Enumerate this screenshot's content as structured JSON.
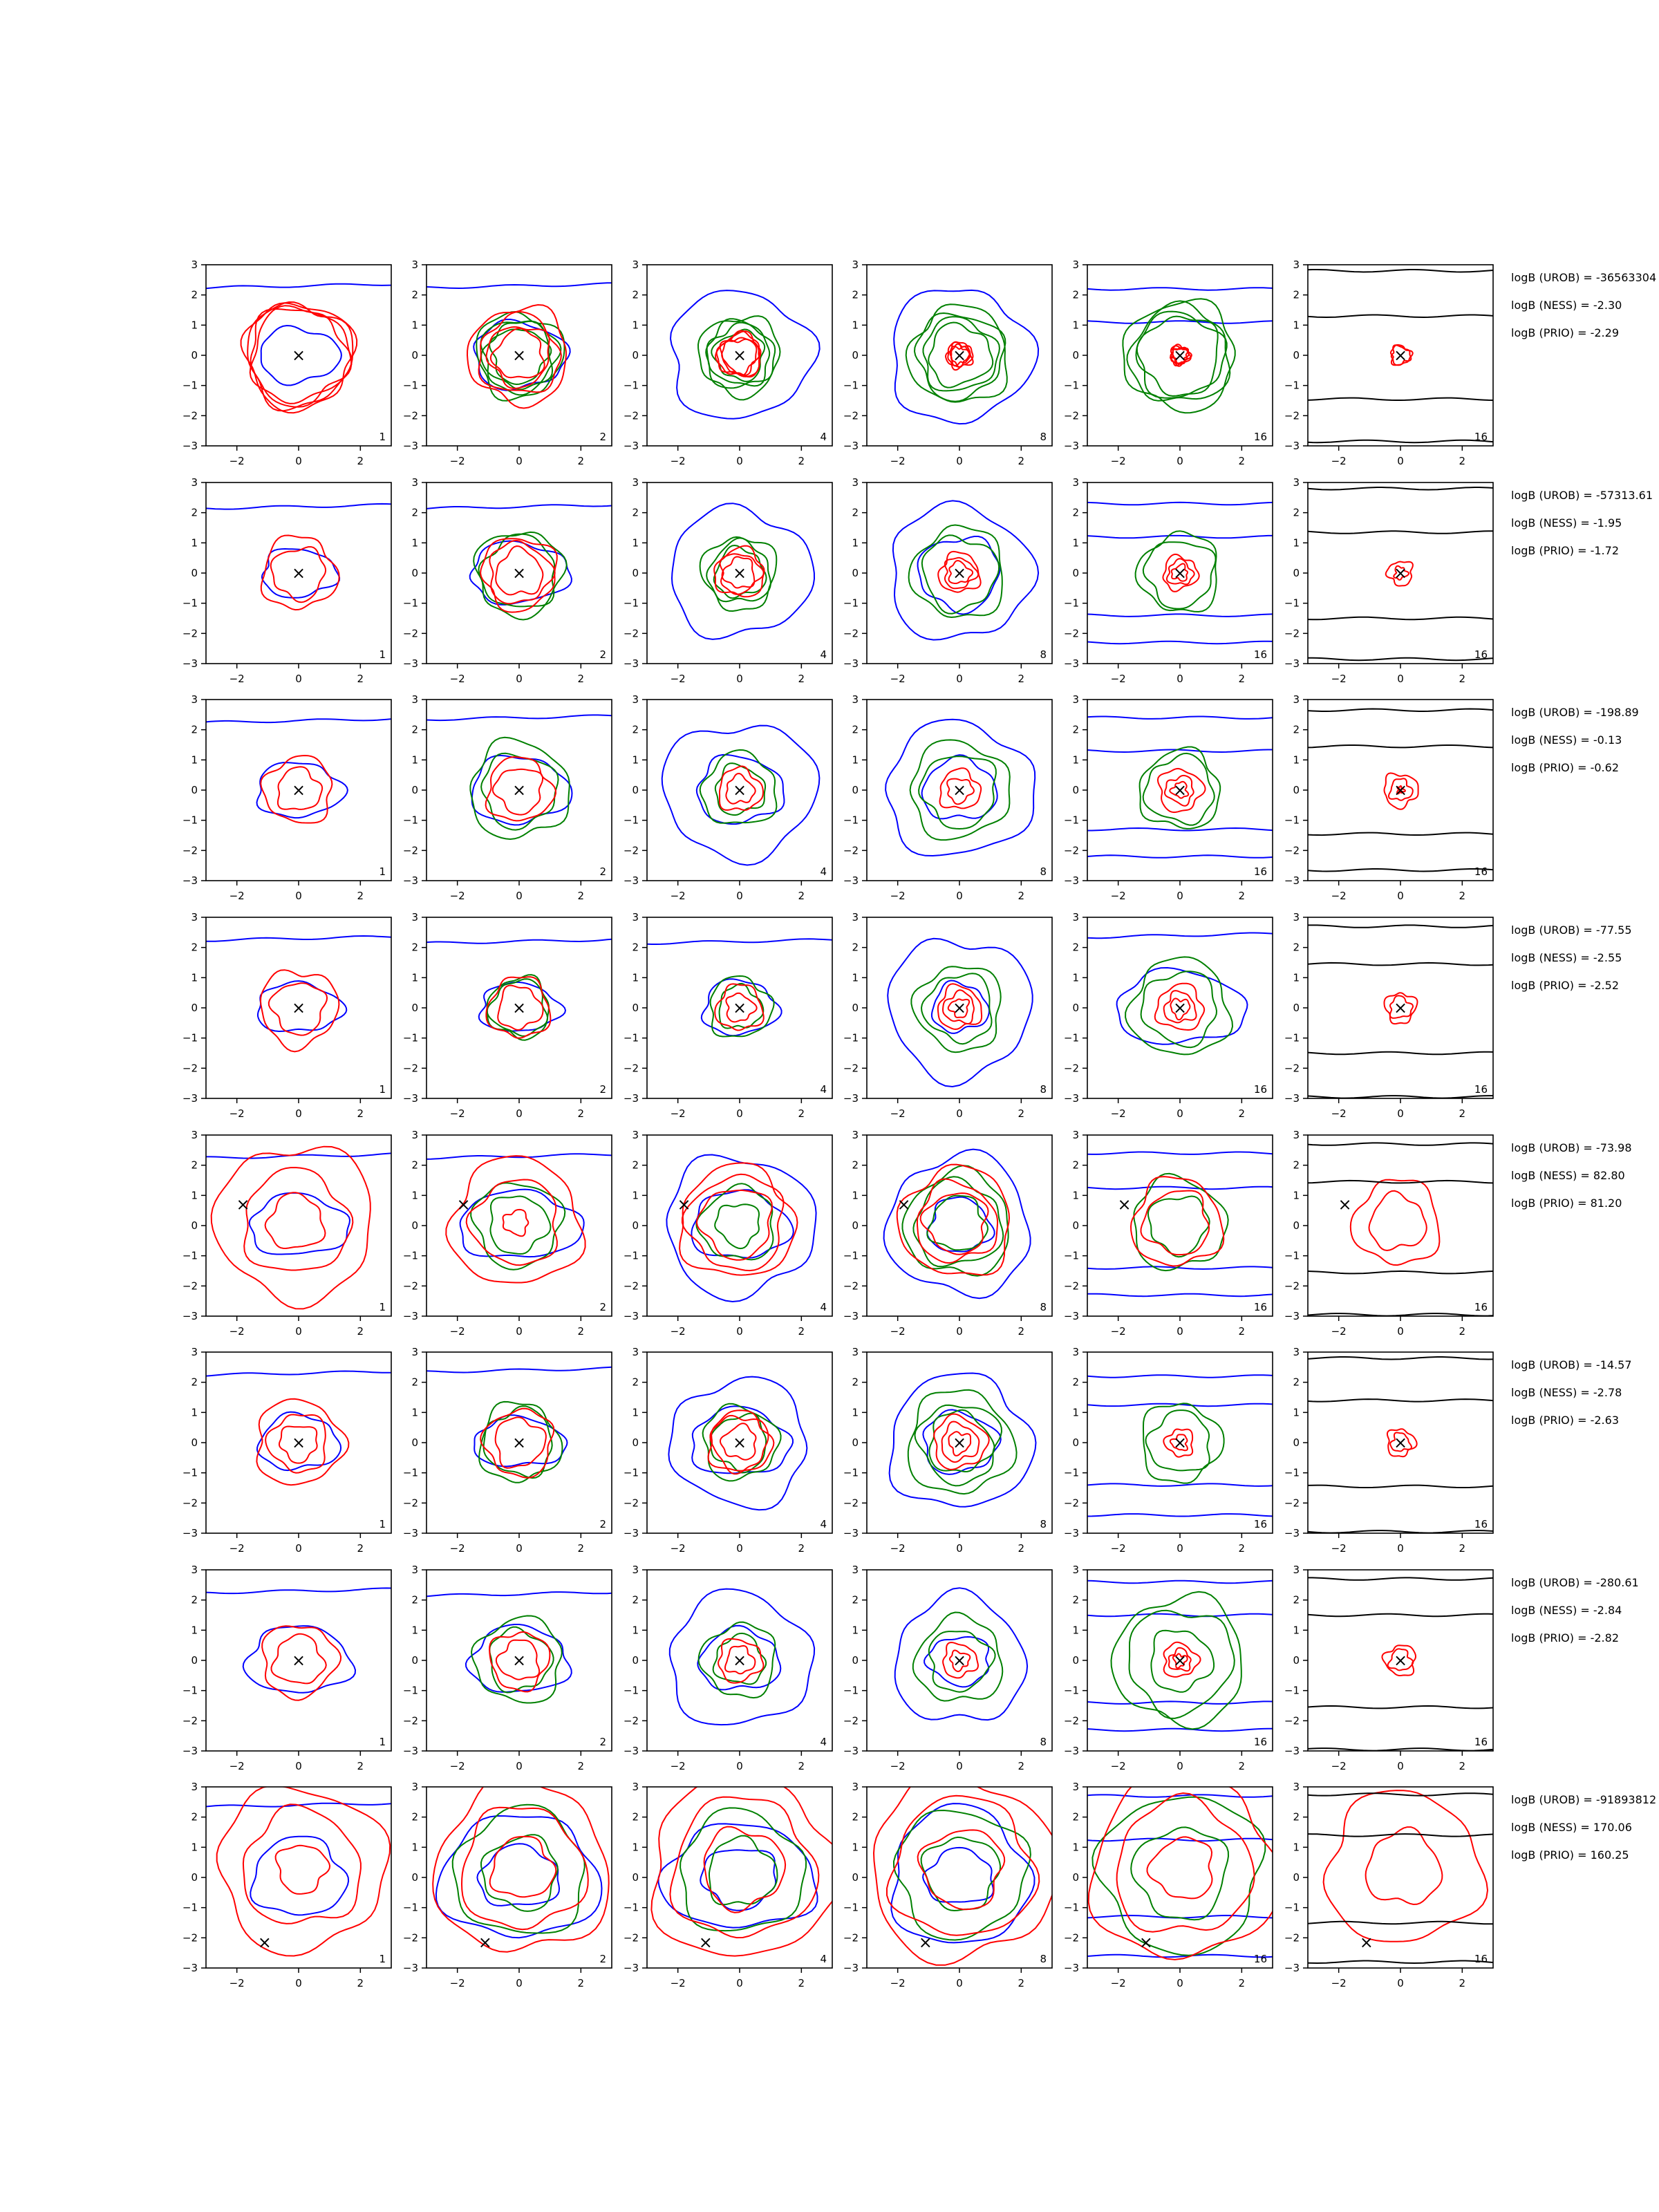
{
  "chart_data": {
    "type": "contour-grid",
    "title": "",
    "panel_axes": {
      "xlim": [
        -3,
        3
      ],
      "ylim": [
        -3,
        3
      ],
      "xticks": [
        -2,
        0,
        2
      ],
      "yticks": [
        -3,
        -2,
        -1,
        0,
        1,
        2,
        3
      ]
    },
    "column_labels": [
      "1",
      "2",
      "4",
      "8",
      "16",
      "16"
    ],
    "series_colors": {
      "red": "#ff0000",
      "green": "#008000",
      "blue": "#0000ff",
      "black": "#000000"
    },
    "marker_symbol": "×",
    "rows": [
      {
        "marker": [
          0,
          0
        ],
        "stats": [
          "logB (UROB) = -36563304",
          "logB (NESS) = -2.30",
          "logB (PRIO) = -2.29"
        ],
        "red": [
          [
            1.55,
            1.75,
            1.6,
            1.7
          ],
          [
            0.8,
            1.0,
            1.3,
            1.6
          ],
          [
            0.55,
            0.7,
            0.6,
            0.7
          ],
          [
            0.3,
            0.4,
            0.3,
            0.4
          ],
          [
            0.25,
            0.3,
            0.25,
            0.3
          ],
          [
            0,
            0,
            0.3,
            0.32
          ]
        ],
        "green": [
          0,
          [
            0.9,
            1.1,
            1.2,
            1.4
          ],
          [
            0.8,
            1.0,
            1.1,
            1.3
          ],
          [
            1.0,
            1.2,
            1.4,
            1.6
          ],
          [
            1.3,
            1.4,
            1.6,
            1.8
          ],
          0
        ],
        "blue": [
          [
            [
              0,
              1.3,
              0.9
            ],
            [
              2,
              2.3
            ]
          ],
          [
            [
              0,
              1.5,
              1.1
            ],
            [
              2,
              2.3
            ]
          ],
          [
            [
              0,
              2.3,
              2.1
            ]
          ],
          [
            [
              0,
              2.3,
              2.2
            ]
          ],
          [
            [
              1,
              1.1,
              2.2
            ]
          ],
          0
        ],
        "black": [
          0,
          0,
          0,
          0,
          0,
          [
            1.3,
            -1.45,
            2.8,
            -2.85
          ]
        ]
      },
      {
        "marker": [
          0,
          0
        ],
        "stats": [
          "logB (UROB) = -57313.61",
          "logB (NESS) = -1.95",
          "logB (PRIO) = -1.72"
        ],
        "red": [
          [
            0.85,
            1.2
          ],
          [
            0.75,
            1.0,
            1.2
          ],
          [
            0.5,
            0.65,
            0.8
          ],
          [
            0.35,
            0.5,
            0.65
          ],
          [
            0.25,
            0.4,
            0.55
          ],
          [
            0.2,
            0.4
          ]
        ],
        "green": [
          0,
          [
            1.2,
            1.4
          ],
          [
            0.8,
            1.0,
            1.2
          ],
          [
            1.2,
            1.5
          ],
          [
            1.1,
            1.3
          ],
          0
        ],
        "blue": [
          [
            [
              0,
              1.2,
              0.8
            ],
            [
              2,
              2.2
            ]
          ],
          [
            [
              0,
              1.6,
              1.0
            ],
            [
              2,
              2.2
            ]
          ],
          [
            [
              0,
              2.3,
              2.1
            ]
          ],
          [
            [
              0,
              2.3,
              2.2
            ],
            [
              0,
              1.3,
              1.2
            ]
          ],
          [
            [
              1,
              1.2,
              2.3,
              -1.4,
              -2.3
            ]
          ],
          0
        ],
        "black": [
          0,
          0,
          0,
          0,
          0,
          [
            1.35,
            -1.5,
            2.8,
            -2.85
          ]
        ]
      },
      {
        "marker": [
          0,
          0
        ],
        "stats": [
          "logB (UROB) = -198.89",
          "logB (NESS) = -0.13",
          "logB (PRIO) = -0.62"
        ],
        "red": [
          [
            0.7,
            1.1
          ],
          [
            0.75,
            1.05
          ],
          [
            0.45,
            0.7
          ],
          [
            0.4,
            0.65
          ],
          [
            0.25,
            0.45,
            0.7
          ],
          [
            0.1,
            0.35,
            0.55
          ]
        ],
        "green": [
          0,
          [
            1.2,
            1.6
          ],
          [
            0.8,
            1.2
          ],
          [
            1.2,
            1.6
          ],
          [
            1.1,
            1.3
          ],
          0
        ],
        "blue": [
          [
            [
              0,
              1.4,
              0.9
            ],
            [
              2,
              2.3
            ]
          ],
          [
            [
              0,
              1.6,
              1.1
            ],
            [
              2,
              2.4
            ]
          ],
          [
            [
              0,
              1.4,
              1.1
            ],
            [
              0,
              2.5,
              2.2
            ]
          ],
          [
            [
              0,
              2.4,
              2.2
            ],
            [
              0,
              1.2,
              1.0
            ]
          ],
          [
            [
              1,
              1.3,
              2.4,
              -1.3,
              -2.2
            ]
          ],
          0
        ],
        "black": [
          0,
          0,
          0,
          0,
          0,
          [
            1.45,
            -1.45,
            2.65,
            -2.65
          ]
        ]
      },
      {
        "marker": [
          0,
          0
        ],
        "stats": [
          "logB (UROB) = -77.55",
          "logB (NESS) = -2.55",
          "logB (PRIO) = -2.52"
        ],
        "red": [
          [
            0.85,
            1.25
          ],
          [
            0.7,
            1.0
          ],
          [
            0.45,
            0.75
          ],
          [
            0.3,
            0.5,
            0.7
          ],
          [
            0.3,
            0.5,
            0.75
          ],
          [
            0.35,
            0.5
          ]
        ],
        "green": [
          0,
          [
            0.9,
            1.0
          ],
          [
            0.7,
            1.0
          ],
          [
            1.1,
            1.4
          ],
          [
            1.2,
            1.6
          ],
          0
        ],
        "blue": [
          [
            [
              0,
              1.4,
              0.8
            ],
            [
              2,
              2.3
            ]
          ],
          [
            [
              0,
              1.3,
              0.8
            ],
            [
              2,
              2.2
            ]
          ],
          [
            [
              0,
              1.2,
              0.9
            ],
            [
              2,
              2.2
            ]
          ],
          [
            [
              0,
              0.9,
              0.8
            ],
            [
              0,
              2.3,
              2.3
            ]
          ],
          [
            [
              0,
              2.1,
              1.2
            ],
            [
              2,
              2.4
            ]
          ],
          0
        ],
        "black": [
          0,
          0,
          0,
          0,
          0,
          [
            1.45,
            -1.5,
            2.7,
            -2.95
          ]
        ]
      },
      {
        "marker": [
          -1.8,
          0.7
        ],
        "stats": [
          "logB (UROB) = -73.98",
          "logB (NESS) = 82.80",
          "logB (PRIO) = 81.20"
        ],
        "red": [
          [
            0.9,
            1.7,
            2.55
          ],
          [
            0.4,
            1.4,
            2.1
          ],
          [
            1.15,
            1.55,
            1.85
          ],
          [
            1.0,
            1.3,
            1.8
          ],
          [
            1.05,
            1.45
          ],
          [
            0.9,
            1.4
          ]
        ],
        "green": [
          0,
          [
            0.95,
            1.4
          ],
          [
            0.7,
            1.2
          ],
          [
            0.9,
            1.4,
            1.7
          ],
          [
            0.95,
            1.5
          ],
          0
        ],
        "blue": [
          [
            [
              0,
              1.6,
              1.0
            ],
            [
              2,
              2.3
            ]
          ],
          [
            [
              0,
              2.0,
              1.1
            ],
            [
              2,
              2.3
            ]
          ],
          [
            [
              0,
              1.6,
              1.1
            ],
            [
              0,
              2.4,
              2.3
            ]
          ],
          [
            [
              0,
              1.0,
              0.9
            ],
            [
              0,
              2.3,
              2.3
            ]
          ],
          [
            [
              1,
              1.25,
              2.4,
              -1.4,
              -2.3
            ]
          ],
          0
        ],
        "black": [
          0,
          0,
          0,
          0,
          0,
          [
            1.45,
            -1.55,
            2.7,
            -2.95
          ]
        ]
      },
      {
        "marker": [
          0,
          0
        ],
        "stats": [
          "logB (UROB) = -14.57",
          "logB (NESS) = -2.78",
          "logB (PRIO) = -2.63"
        ],
        "red": [
          [
            0.6,
            0.95,
            1.4
          ],
          [
            0.8,
            1.1
          ],
          [
            0.55,
            0.9,
            1.0
          ],
          [
            0.35,
            0.6,
            0.85
          ],
          [
            0.25,
            0.45
          ],
          [
            0.3,
            0.45
          ]
        ],
        "green": [
          0,
          [
            1.1,
            1.3
          ],
          [
            0.9,
            1.2
          ],
          [
            1.0,
            1.3,
            1.7
          ],
          [
            1.0,
            1.3
          ],
          0
        ],
        "blue": [
          [
            [
              0,
              1.3,
              0.9
            ],
            [
              2,
              2.3
            ]
          ],
          [
            [
              0,
              1.5,
              0.8
            ],
            [
              2,
              2.4
            ]
          ],
          [
            [
              0,
              1.6,
              1.1
            ],
            [
              0,
              2.2,
              2.1
            ]
          ],
          [
            [
              0,
              2.3,
              2.2
            ],
            [
              0,
              1.2,
              1.0
            ]
          ],
          [
            [
              1,
              1.25,
              2.2,
              -1.4,
              -2.4
            ]
          ],
          0
        ],
        "black": [
          0,
          0,
          0,
          0,
          0,
          [
            1.4,
            -1.45,
            2.8,
            -2.95
          ]
        ]
      },
      {
        "marker": [
          0,
          0
        ],
        "stats": [
          "logB (UROB) = -280.61",
          "logB (NESS) = -2.84",
          "logB (PRIO) = -2.82"
        ],
        "red": [
          [
            0.8,
            1.2
          ],
          [
            0.65,
            0.95
          ],
          [
            0.45,
            0.7
          ],
          [
            0.3,
            0.55
          ],
          [
            0.2,
            0.35,
            0.55
          ],
          [
            0.35,
            0.5
          ]
        ],
        "green": [
          0,
          [
            1.0,
            1.4
          ],
          [
            0.8,
            1.2
          ],
          [
            1.0,
            1.4
          ],
          [
            1.0,
            1.7,
            2.1
          ],
          0
        ],
        "blue": [
          [
            [
              0,
              1.7,
              1.1
            ],
            [
              2,
              2.3
            ]
          ],
          [
            [
              0,
              1.6,
              1.1
            ],
            [
              2,
              2.2
            ]
          ],
          [
            [
              0,
              1.3,
              1.0
            ],
            [
              0,
              2.3,
              2.2
            ]
          ],
          [
            [
              0,
              2.1,
              2.1
            ],
            [
              0,
              1.0,
              0.8
            ]
          ],
          [
            [
              1,
              1.5,
              2.6,
              -1.4,
              -2.3
            ]
          ],
          0
        ],
        "black": [
          0,
          0,
          0,
          0,
          0,
          [
            1.5,
            -1.55,
            2.7,
            -2.95
          ]
        ]
      },
      {
        "marker": [
          -1.1,
          -2.15
        ],
        "stats": [
          "logB (UROB) = -91893812",
          "logB (NESS) = 170.06",
          "logB (PRIO) = 160.25"
        ],
        "red": [
          [
            0.8,
            1.9,
            2.7
          ],
          [
            1.0,
            2.0,
            2.8
          ],
          [
            1.3,
            2.3,
            3.0
          ],
          [
            1.3,
            2.3,
            3.0
          ],
          [
            1.0,
            2.2,
            3.0
          ],
          [
            1.2,
            2.5
          ]
        ],
        "green": [
          0,
          [
            1.2,
            2.1
          ],
          [
            1.1,
            2.0
          ],
          [
            1.2,
            2.1
          ],
          [
            1.5,
            2.6
          ],
          0
        ],
        "blue": [
          [
            [
              0,
              1.5,
              1.3
            ],
            [
              2,
              2.4
            ]
          ],
          [
            [
              0,
              2.6,
              2.0
            ],
            [
              0,
              1.3,
              1.0
            ]
          ],
          [
            [
              0,
              2.5,
              1.7
            ],
            [
              0,
              1.2,
              1.0
            ]
          ],
          [
            [
              0,
              1.1,
              0.9
            ],
            [
              0,
              2.2,
              2.3
            ]
          ],
          [
            [
              1,
              1.25,
              2.7,
              -1.3,
              -2.6
            ]
          ],
          0
        ],
        "black": [
          0,
          0,
          0,
          0,
          0,
          [
            1.4,
            -1.5,
            2.75,
            -2.8
          ]
        ]
      }
    ]
  }
}
